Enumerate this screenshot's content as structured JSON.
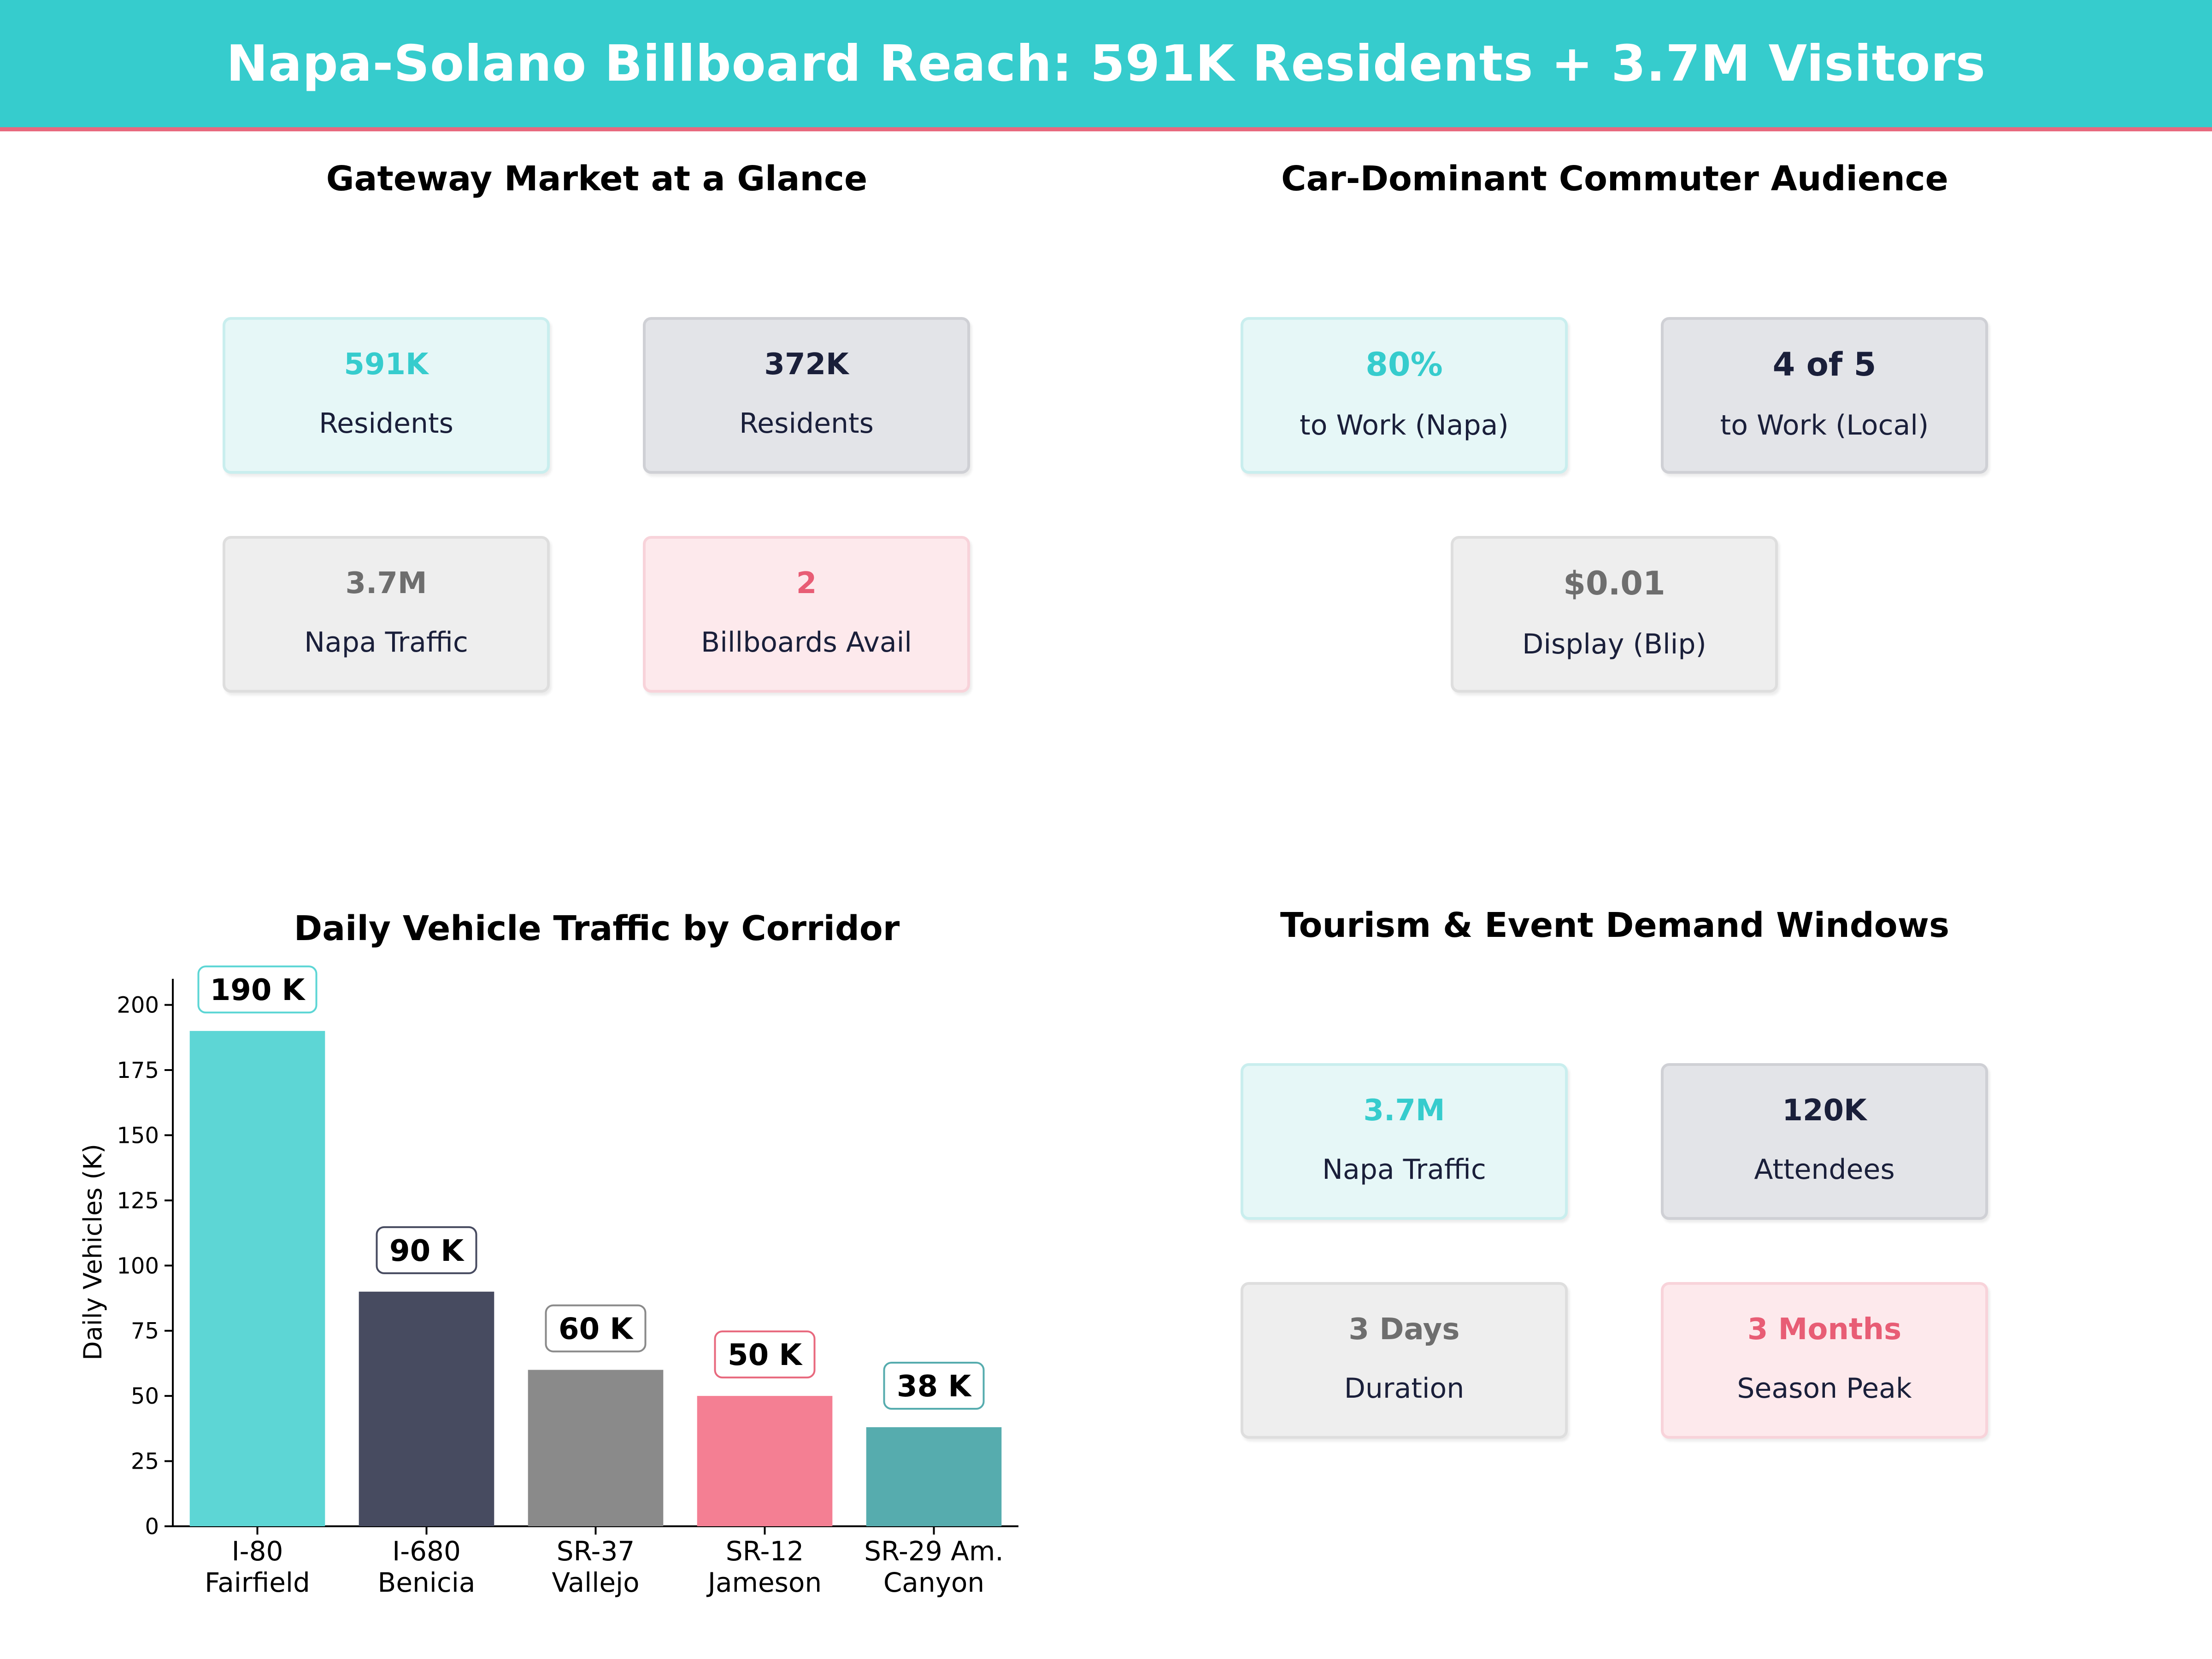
{
  "header": {
    "title": "Napa-Solano Billboard Reach: 591K Residents + 3.7M Visitors"
  },
  "colors": {
    "teal": "#36cccd",
    "navy": "#1a1f3a",
    "gray": "#6e6e6e",
    "pink": "#e85d75"
  },
  "panels": {
    "gateway": {
      "title": "Gateway Market at a Glance",
      "cards": [
        {
          "value": "591K",
          "label": "Residents",
          "style": "teal"
        },
        {
          "value": "372K",
          "label": "Residents",
          "style": "navy"
        },
        {
          "value": "3.7M",
          "label": "Napa Traffic",
          "style": "gray"
        },
        {
          "value": "2",
          "label": "Billboards Avail",
          "style": "pink"
        }
      ]
    },
    "commuter": {
      "title": "Car-Dominant Commuter Audience",
      "cards": [
        {
          "value": "80%",
          "label": "to Work (Napa)",
          "style": "teal"
        },
        {
          "value": "4 of 5",
          "label": "to Work (Local)",
          "style": "navy"
        },
        {
          "value": "$0.01",
          "label": "Display (Blip)",
          "style": "gray"
        }
      ]
    },
    "tourism": {
      "title": "Tourism & Event Demand Windows",
      "cards": [
        {
          "value": "3.7M",
          "label": "Napa Traffic",
          "style": "teal"
        },
        {
          "value": "120K",
          "label": "Attendees",
          "style": "navy"
        },
        {
          "value": "3 Days",
          "label": "Duration",
          "style": "gray"
        },
        {
          "value": "3 Months",
          "label": "Season Peak",
          "style": "pink"
        }
      ]
    }
  },
  "chart_data": {
    "type": "bar",
    "title": "Daily Vehicle Traffic by Corridor",
    "ylabel": "Daily Vehicles (K)",
    "xlabel": "",
    "ylim": [
      0,
      210
    ],
    "yticks": [
      0,
      25,
      50,
      75,
      100,
      125,
      150,
      175,
      200
    ],
    "grid": false,
    "categories": [
      [
        "I-80",
        "Fairfield"
      ],
      [
        "I-680",
        "Benicia"
      ],
      [
        "SR-37",
        "Vallejo"
      ],
      [
        "SR-12",
        "Jameson"
      ],
      [
        "SR-29 Am.",
        "Canyon"
      ]
    ],
    "values": [
      190,
      90,
      60,
      50,
      38
    ],
    "value_labels": [
      "190 K",
      "90 K",
      "60 K",
      "50 K",
      "38 K"
    ],
    "bar_colors": [
      "#5dd6d5",
      "#474b60",
      "#8a8a8a",
      "#f47f93",
      "#56acae"
    ],
    "label_border_colors": [
      "#5dd6d5",
      "#474b60",
      "#8a8a8a",
      "#e8697e",
      "#56acae"
    ]
  }
}
